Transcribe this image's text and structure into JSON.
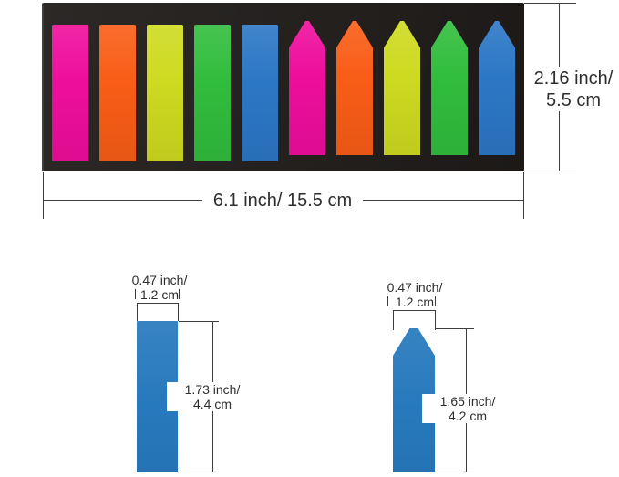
{
  "page": {
    "background": "#ffffff",
    "line_color": "#3d3d3d",
    "text_color": "#2e2e2e"
  },
  "pad": {
    "name": "neon page-marker index tab pad",
    "color": "#211d1b",
    "tabs": [
      {
        "shape": "rect",
        "color_name": "pink",
        "hex": "#EE0E9C"
      },
      {
        "shape": "rect",
        "color_name": "orange",
        "hex": "#F95D17"
      },
      {
        "shape": "rect",
        "color_name": "yellow-green",
        "hex": "#CEDA20"
      },
      {
        "shape": "rect",
        "color_name": "green",
        "hex": "#31BD3D"
      },
      {
        "shape": "rect",
        "color_name": "blue",
        "hex": "#2C77C5"
      },
      {
        "shape": "arrow",
        "color_name": "pink",
        "hex": "#EE0E9C"
      },
      {
        "shape": "arrow",
        "color_name": "orange",
        "hex": "#F95D17"
      },
      {
        "shape": "arrow",
        "color_name": "yellow-green",
        "hex": "#CEDA20"
      },
      {
        "shape": "arrow",
        "color_name": "green",
        "hex": "#31BD3D"
      },
      {
        "shape": "arrow",
        "color_name": "blue",
        "hex": "#2C77C5"
      }
    ]
  },
  "annotations": {
    "pad_height": {
      "line1": "2.16 inch/",
      "line2": "5.5 cm"
    },
    "pad_width": {
      "label": "6.1 inch/ 15.5 cm"
    },
    "rect_tab": {
      "hex": "#2779BD",
      "width_line1": "0.47 inch/",
      "width_line2": "1.2 cm",
      "height_line1": "1.73 inch/",
      "height_line2": "4.4 cm"
    },
    "arrow_tab": {
      "hex": "#2779BD",
      "width_line1": "0.47 inch/",
      "width_line2": "1.2 cm",
      "height_line1": "1.65 inch/",
      "height_line2": "4.2 cm"
    }
  }
}
